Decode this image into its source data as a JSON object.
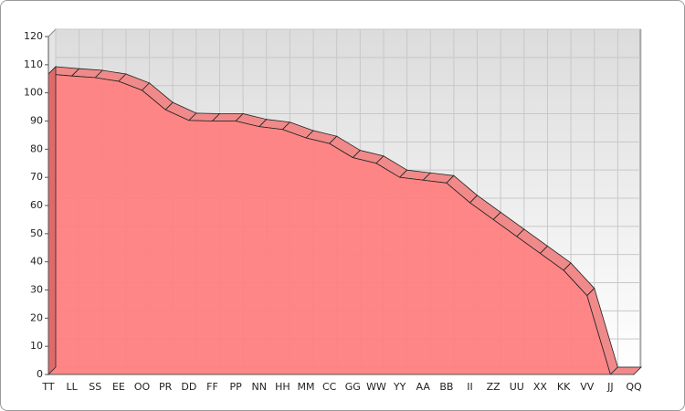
{
  "chart_data": {
    "type": "area3d",
    "categories": [
      "TT",
      "LL",
      "SS",
      "EE",
      "OO",
      "PR",
      "DD",
      "FF",
      "PP",
      "NN",
      "HH",
      "MM",
      "CC",
      "GG",
      "WW",
      "YY",
      "AA",
      "BB",
      "II",
      "ZZ",
      "UU",
      "XX",
      "KK",
      "VV",
      "JJ",
      "QQ"
    ],
    "values": [
      106.7,
      106,
      105.4,
      104.1,
      100.9,
      94,
      90.2,
      90,
      90,
      88,
      87,
      84,
      82,
      77,
      75,
      70,
      69,
      68,
      61,
      55,
      49,
      43,
      37,
      28,
      0,
      0
    ],
    "color": "#ff7f7f",
    "ylim": [
      0,
      120
    ],
    "yticks": [
      0,
      10,
      20,
      30,
      40,
      50,
      60,
      70,
      80,
      90,
      100,
      110,
      120
    ],
    "grid": true
  }
}
